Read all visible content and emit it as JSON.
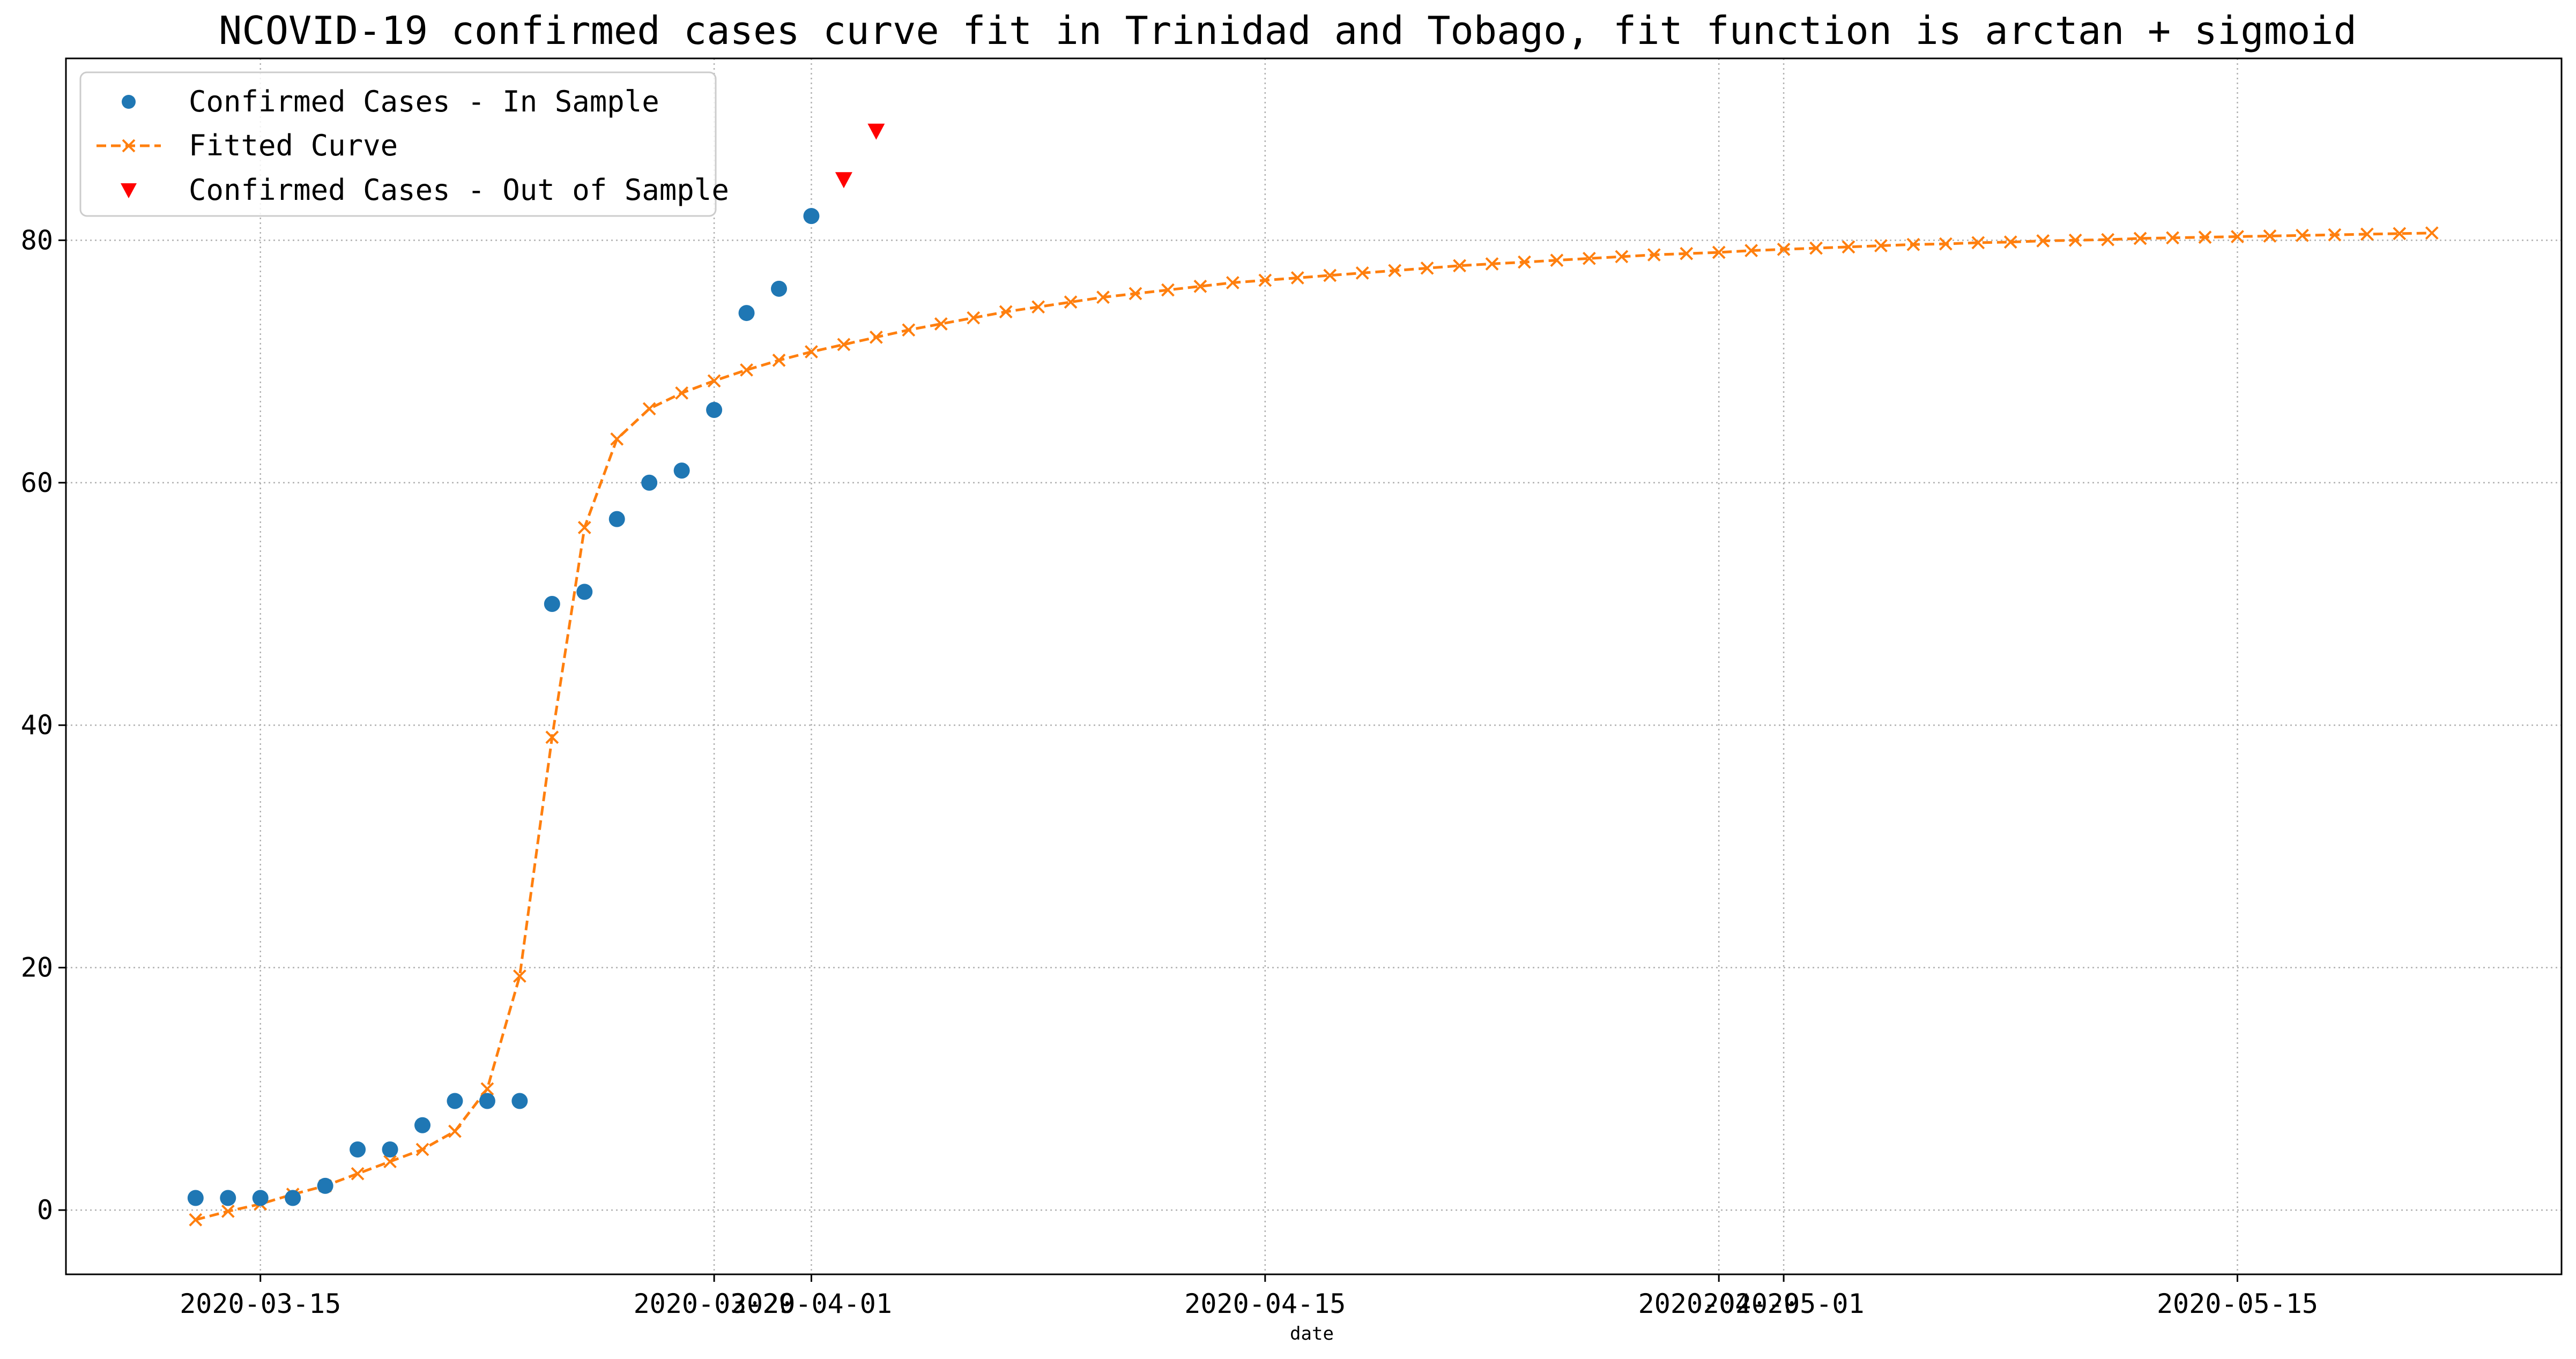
{
  "chart_data": {
    "type": "line",
    "title": "NCOVID-19 confirmed cases curve fit in Trinidad and Tobago, fit function is arctan + sigmoid",
    "xlabel": "date",
    "ylabel": "",
    "xlim": [
      "2020-03-09",
      "2020-05-25"
    ],
    "ylim": [
      -5.3,
      95
    ],
    "grid": true,
    "grid_style": "dotted",
    "legend_position": "top-left",
    "x_ticks": [
      "2020-03-15",
      "2020-03-29",
      "2020-04-01",
      "2020-04-15",
      "2020-04-29",
      "2020-05-01",
      "2020-05-15"
    ],
    "y_ticks": [
      0,
      20,
      40,
      60,
      80
    ],
    "series": [
      {
        "name": "Confirmed Cases - In Sample",
        "style": "marker-circle",
        "color": "#1f77b4",
        "x": [
          "2020-03-13",
          "2020-03-14",
          "2020-03-15",
          "2020-03-16",
          "2020-03-17",
          "2020-03-18",
          "2020-03-19",
          "2020-03-20",
          "2020-03-21",
          "2020-03-22",
          "2020-03-23",
          "2020-03-24",
          "2020-03-25",
          "2020-03-26",
          "2020-03-27",
          "2020-03-28",
          "2020-03-29",
          "2020-03-30",
          "2020-03-31",
          "2020-04-01"
        ],
        "values": [
          1,
          1,
          1,
          1,
          2,
          5,
          5,
          7,
          9,
          9,
          9,
          50,
          51,
          57,
          60,
          61,
          66,
          74,
          76,
          82
        ]
      },
      {
        "name": "Fitted Curve",
        "style": "dashed-line-x-marker",
        "color": "#ff7f0e",
        "x_start": "2020-03-13",
        "values": [
          -0.8,
          -0.1,
          0.5,
          1.3,
          2.0,
          3.0,
          4.0,
          5.0,
          6.5,
          10.0,
          19.3,
          39.0,
          56.3,
          63.6,
          66.1,
          67.4,
          68.4,
          69.3,
          70.1,
          70.8,
          71.4,
          72.0,
          72.6,
          73.1,
          73.6,
          74.1,
          74.5,
          74.9,
          75.3,
          75.6,
          75.9,
          76.2,
          76.5,
          76.7,
          76.9,
          77.1,
          77.3,
          77.5,
          77.7,
          77.9,
          78.05,
          78.2,
          78.35,
          78.5,
          78.65,
          78.8,
          78.9,
          79.0,
          79.15,
          79.25,
          79.35,
          79.45,
          79.55,
          79.65,
          79.7,
          79.8,
          79.85,
          79.95,
          80.0,
          80.05,
          80.15,
          80.2,
          80.25,
          80.3,
          80.35,
          80.4,
          80.45,
          80.5,
          80.55,
          80.6
        ]
      },
      {
        "name": "Confirmed Cases - Out of Sample",
        "style": "marker-triangle-down",
        "color": "#ff0000",
        "x": [
          "2020-04-02",
          "2020-04-03"
        ],
        "values": [
          85,
          89
        ]
      }
    ]
  }
}
